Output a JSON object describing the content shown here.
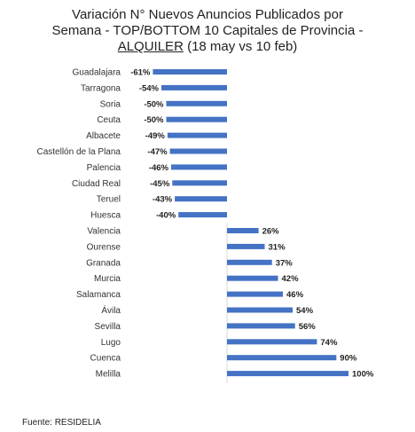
{
  "title": {
    "line1": "Variación N° Nuevos Anuncios Publicados por",
    "line2": "Semana - TOP/BOTTOM 10 Capitales de Provincia -",
    "line3_underlined": "ALQUILER",
    "line3_rest": " (18 may vs 10 feb)"
  },
  "source": "Fuente: RESIDELIA",
  "chart_data": {
    "type": "bar",
    "orientation": "horizontal",
    "categories": [
      "Guadalajara",
      "Tarragona",
      "Soria",
      "Ceuta",
      "Albacete",
      "Castellón de la Plana",
      "Palencia",
      "Ciudad Real",
      "Teruel",
      "Huesca",
      "Valencia",
      "Ourense",
      "Granada",
      "Murcia",
      "Salamanca",
      "Ávila",
      "Sevilla",
      "Lugo",
      "Cuenca",
      "Melilla"
    ],
    "values": [
      -61,
      -54,
      -50,
      -50,
      -49,
      -47,
      -46,
      -45,
      -43,
      -40,
      26,
      31,
      37,
      42,
      46,
      54,
      56,
      74,
      90,
      100
    ],
    "labels": [
      "-61%",
      "-54%",
      "-50%",
      "-50%",
      "-49%",
      "-47%",
      "-46%",
      "-45%",
      "-43%",
      "-40%",
      "26%",
      "31%",
      "37%",
      "42%",
      "46%",
      "54%",
      "56%",
      "74%",
      "90%",
      "100%"
    ],
    "bar_color": "#4472C4",
    "grid": false,
    "legend": "none"
  }
}
